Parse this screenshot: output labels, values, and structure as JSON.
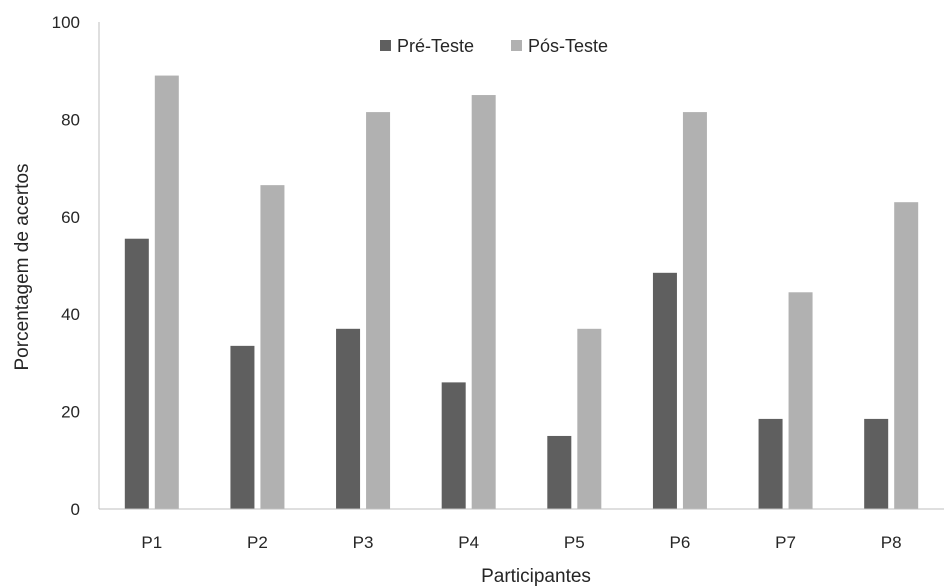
{
  "chart_data": {
    "type": "bar",
    "categories": [
      "P1",
      "P2",
      "P3",
      "P4",
      "P5",
      "P6",
      "P7",
      "P8"
    ],
    "series": [
      {
        "name": "Pré-Teste",
        "color": "#5f5f5f",
        "values": [
          55.5,
          33.5,
          37,
          26,
          15,
          48.5,
          18.5,
          18.5
        ]
      },
      {
        "name": "Pós-Teste",
        "color": "#b1b1b1",
        "values": [
          89,
          66.5,
          81.5,
          85,
          37,
          81.5,
          44.5,
          63
        ]
      }
    ],
    "xlabel": "Participantes",
    "ylabel": "Porcentagem de acertos",
    "ylim": [
      0,
      100
    ],
    "yticks": [
      0,
      20,
      40,
      60,
      80,
      100
    ],
    "grid": false,
    "legend_position": "top-center"
  }
}
